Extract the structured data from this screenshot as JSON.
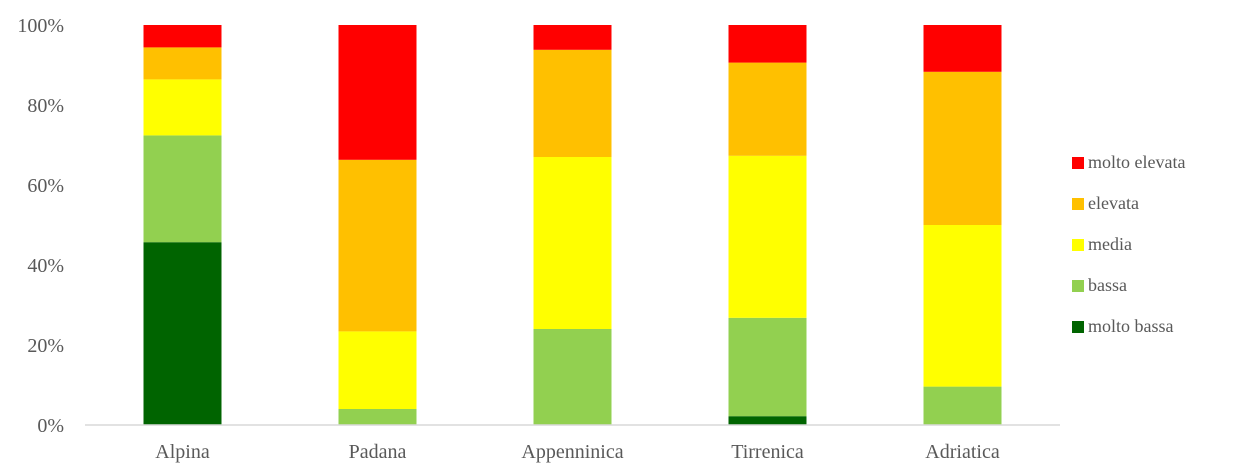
{
  "chart_data": {
    "type": "bar",
    "stacked": true,
    "categories": [
      "Alpina",
      "Padana",
      "Appenninica",
      "Tirrenica",
      "Adriatica"
    ],
    "ylim": [
      0,
      100
    ],
    "yticks": [
      "0%",
      "20%",
      "40%",
      "60%",
      "80%",
      "100%"
    ],
    "legend_position": "right",
    "series": [
      {
        "name": "molto bassa",
        "color": "#006400",
        "values": [
          45.7,
          0,
          0,
          2.2,
          0
        ]
      },
      {
        "name": "bassa",
        "color": "#92D050",
        "values": [
          26.7,
          4.0,
          24.0,
          24.6,
          9.6
        ]
      },
      {
        "name": "media",
        "color": "#FFFF00",
        "values": [
          14.0,
          19.4,
          43.0,
          40.5,
          40.4
        ]
      },
      {
        "name": "elevata",
        "color": "#FFC000",
        "values": [
          8.0,
          42.9,
          26.8,
          23.3,
          38.3
        ]
      },
      {
        "name": "molto elevata",
        "color": "#FF0000",
        "values": [
          5.6,
          33.7,
          6.2,
          9.4,
          11.7
        ]
      }
    ]
  }
}
